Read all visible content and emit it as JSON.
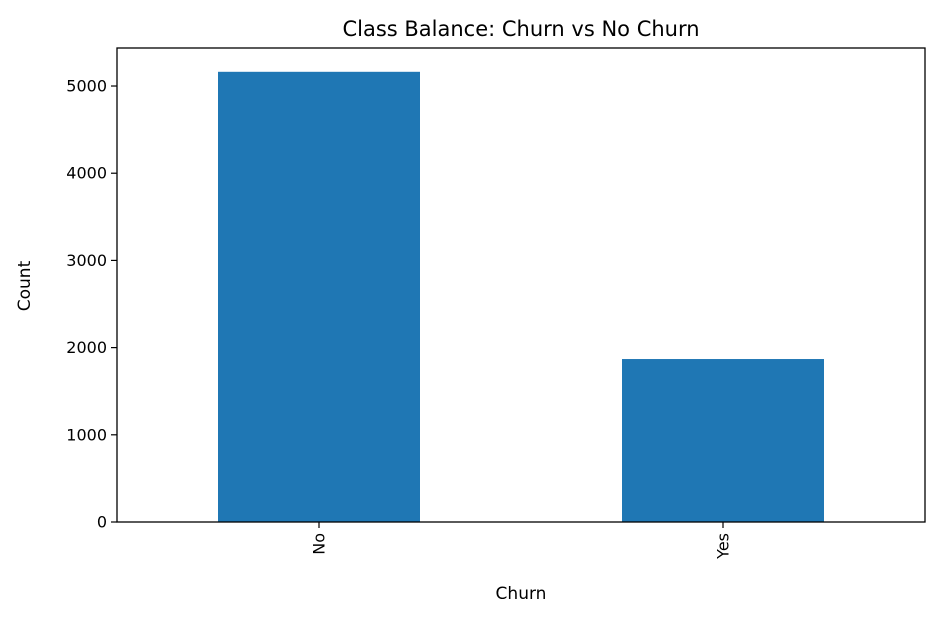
{
  "chart_data": {
    "type": "bar",
    "title": "Class Balance: Churn vs No Churn",
    "xlabel": "Churn",
    "ylabel": "Count",
    "categories": [
      "No",
      "Yes"
    ],
    "values": [
      5163,
      1869
    ],
    "ylim": [
      0,
      5436
    ],
    "yticks": [
      "0",
      "1000",
      "2000",
      "3000",
      "4000",
      "5000"
    ],
    "grid": false,
    "bar_color": "#1f77b4"
  }
}
